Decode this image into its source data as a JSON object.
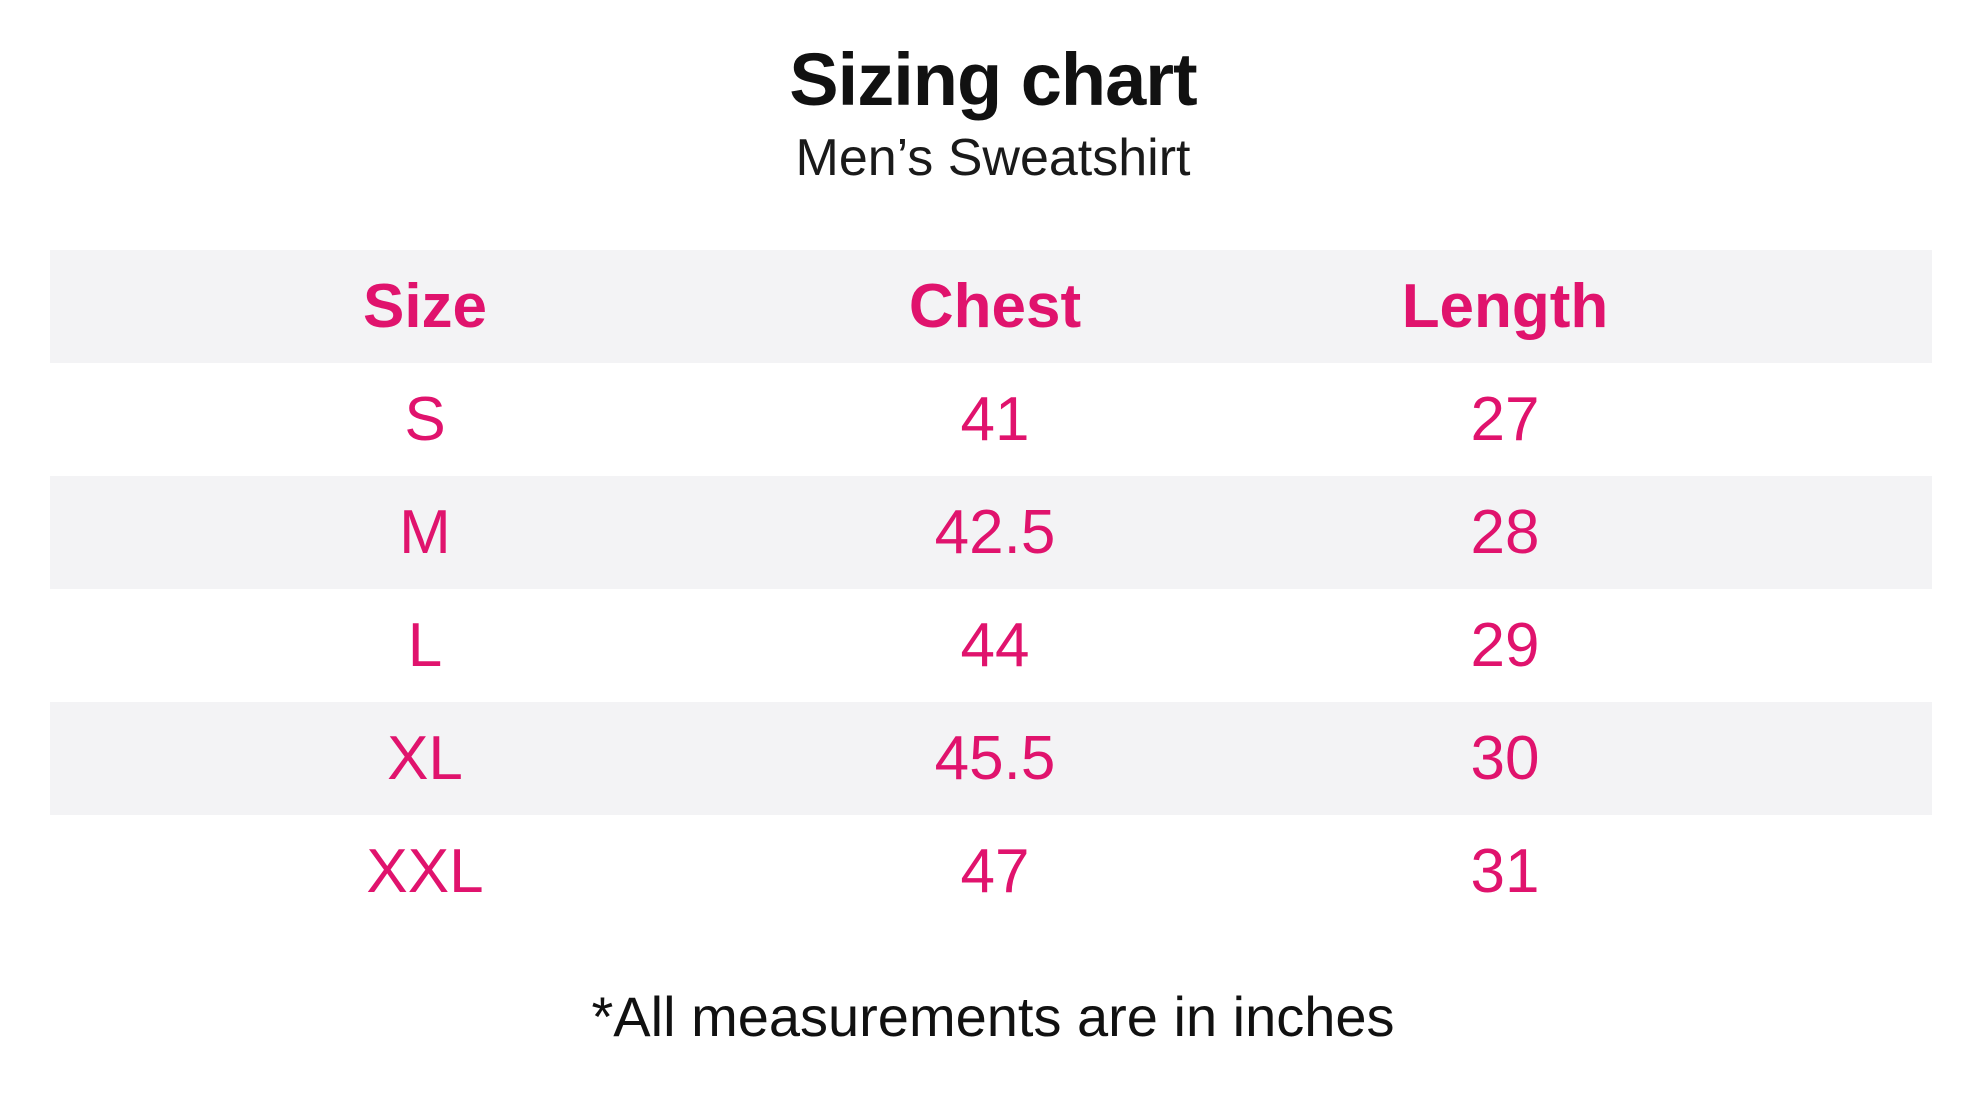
{
  "colors": {
    "accent_pink": "#e0136d",
    "stripe_gray": "#f3f3f5",
    "text_black": "#111111",
    "background": "#ffffff"
  },
  "chart_data": {
    "type": "table",
    "title": "Sizing chart",
    "subtitle": "Men’s Sweatshirt",
    "columns": [
      "Size",
      "Chest",
      "Length"
    ],
    "rows": [
      {
        "size": "S",
        "chest": "41",
        "length": "27"
      },
      {
        "size": "M",
        "chest": "42.5",
        "length": "28"
      },
      {
        "size": "L",
        "chest": "44",
        "length": "29"
      },
      {
        "size": "XL",
        "chest": "45.5",
        "length": "30"
      },
      {
        "size": "XXL",
        "chest": "47",
        "length": "31"
      }
    ],
    "units": "inches",
    "footnote": "*All measurements are in inches",
    "layout": {
      "striped_rows": "header, M, XL",
      "grid": "off",
      "text_alignment": "center"
    }
  }
}
